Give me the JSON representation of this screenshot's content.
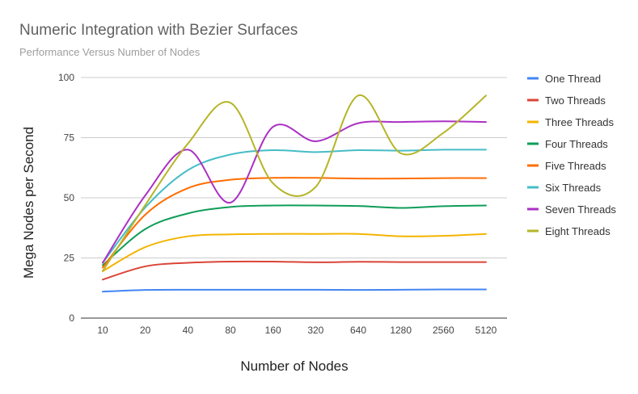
{
  "chart_data": {
    "type": "line",
    "title": "Numeric Integration with Bezier Surfaces",
    "subtitle": "Performance Versus Number of Nodes",
    "xlabel": "Number of Nodes",
    "ylabel": "Mega Nodes per Second",
    "categories": [
      "10",
      "20",
      "40",
      "80",
      "160",
      "320",
      "640",
      "1280",
      "2560",
      "5120"
    ],
    "ylim": [
      0,
      100
    ],
    "yticks": [
      "0",
      "25",
      "50",
      "75",
      "100"
    ],
    "grid": true,
    "legend_position": "right",
    "series": [
      {
        "name": "One Thread",
        "color": "#4285f4",
        "values": [
          11,
          11.7,
          11.8,
          11.8,
          11.8,
          11.8,
          11.7,
          11.8,
          11.9,
          11.9
        ]
      },
      {
        "name": "Two Threads",
        "color": "#db4437",
        "values": [
          16,
          21.5,
          23,
          23.5,
          23.5,
          23.2,
          23.4,
          23.3,
          23.3,
          23.3
        ]
      },
      {
        "name": "Three Threads",
        "color": "#f4b400",
        "values": [
          19.5,
          29.5,
          34,
          34.8,
          35,
          35,
          35,
          34,
          34.2,
          35
        ]
      },
      {
        "name": "Four Threads",
        "color": "#0f9d58",
        "values": [
          22,
          37,
          43.5,
          46.2,
          46.8,
          46.8,
          46.6,
          45.8,
          46.5,
          46.8
        ]
      },
      {
        "name": "Five Threads",
        "color": "#ff6d00",
        "values": [
          21,
          43,
          54,
          57.5,
          58.3,
          58.3,
          58,
          58,
          58.2,
          58.2
        ]
      },
      {
        "name": "Six Threads",
        "color": "#46bdc6",
        "values": [
          23,
          46,
          61.5,
          68,
          69.8,
          69,
          69.8,
          69.6,
          70,
          70
        ]
      },
      {
        "name": "Seven Threads",
        "color": "#ab30c4",
        "values": [
          23,
          51,
          70,
          48,
          79.5,
          73.5,
          81,
          81.5,
          81.8,
          81.5
        ]
      },
      {
        "name": "Eight Threads",
        "color": "#b5b52a",
        "values": [
          19.5,
          47,
          72.5,
          89.5,
          56,
          54.5,
          92.5,
          68.5,
          77,
          92.5
        ]
      }
    ]
  }
}
